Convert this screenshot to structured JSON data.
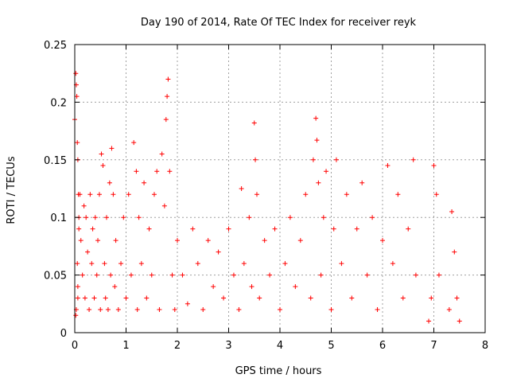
{
  "chart_data": {
    "type": "scatter",
    "title": "Day 190 of 2014, Rate Of TEC Index for receiver reyk",
    "xlabel": "GPS time / hours",
    "ylabel": "ROTI / TECUs",
    "xlim": [
      0,
      8
    ],
    "ylim": [
      0,
      0.25
    ],
    "xticks": [
      0,
      1,
      2,
      3,
      4,
      5,
      6,
      7,
      8
    ],
    "xtick_labels": [
      "0",
      "1",
      "2",
      "3",
      "4",
      "5",
      "6",
      "7",
      "8"
    ],
    "yticks": [
      0,
      0.05,
      0.1,
      0.15,
      0.2,
      0.25
    ],
    "ytick_labels": [
      "0",
      "0.05",
      "0.1",
      "0.15",
      "0.2",
      "0.25"
    ],
    "grid": true,
    "marker": "+",
    "color": "#ff0000",
    "series": [
      {
        "name": "ROTI",
        "x": [
          0.0,
          0.02,
          0.03,
          0.04,
          0.05,
          0.06,
          0.07,
          0.08,
          0.05,
          0.06,
          0.03,
          0.02,
          0.06,
          0.08,
          0.1,
          0.12,
          0.15,
          0.18,
          0.2,
          0.22,
          0.25,
          0.28,
          0.3,
          0.33,
          0.35,
          0.38,
          0.4,
          0.43,
          0.45,
          0.48,
          0.5,
          0.52,
          0.55,
          0.58,
          0.6,
          0.62,
          0.65,
          0.68,
          0.7,
          0.72,
          0.75,
          0.78,
          0.8,
          0.85,
          0.9,
          0.95,
          1.0,
          1.05,
          1.1,
          1.15,
          1.2,
          1.22,
          1.25,
          1.3,
          1.35,
          1.4,
          1.45,
          1.5,
          1.55,
          1.6,
          1.65,
          1.7,
          1.75,
          1.78,
          1.8,
          1.82,
          1.85,
          1.9,
          1.95,
          2.0,
          2.1,
          2.2,
          2.3,
          2.4,
          2.5,
          2.6,
          2.7,
          2.8,
          2.9,
          3.0,
          3.1,
          3.2,
          3.25,
          3.3,
          3.4,
          3.45,
          3.5,
          3.52,
          3.55,
          3.6,
          3.7,
          3.8,
          3.9,
          4.0,
          4.1,
          4.2,
          4.3,
          4.4,
          4.5,
          4.6,
          4.65,
          4.7,
          4.72,
          4.75,
          4.8,
          4.85,
          4.9,
          5.0,
          5.05,
          5.1,
          5.2,
          5.3,
          5.4,
          5.5,
          5.6,
          5.7,
          5.8,
          5.9,
          6.0,
          6.1,
          6.2,
          6.3,
          6.4,
          6.5,
          6.6,
          6.65,
          6.9,
          6.95,
          7.0,
          7.05,
          7.1,
          7.3,
          7.35,
          7.4,
          7.45,
          7.5
        ],
        "y": [
          0.185,
          0.225,
          0.215,
          0.205,
          0.165,
          0.15,
          0.12,
          0.1,
          0.06,
          0.04,
          0.02,
          0.015,
          0.03,
          0.09,
          0.12,
          0.08,
          0.05,
          0.11,
          0.03,
          0.1,
          0.07,
          0.02,
          0.12,
          0.06,
          0.09,
          0.03,
          0.1,
          0.05,
          0.08,
          0.12,
          0.02,
          0.155,
          0.145,
          0.06,
          0.03,
          0.1,
          0.02,
          0.13,
          0.05,
          0.16,
          0.12,
          0.04,
          0.08,
          0.02,
          0.06,
          0.1,
          0.03,
          0.12,
          0.05,
          0.165,
          0.14,
          0.02,
          0.1,
          0.06,
          0.13,
          0.03,
          0.09,
          0.05,
          0.12,
          0.14,
          0.02,
          0.155,
          0.11,
          0.185,
          0.205,
          0.22,
          0.14,
          0.05,
          0.02,
          0.08,
          0.05,
          0.025,
          0.09,
          0.06,
          0.02,
          0.08,
          0.04,
          0.07,
          0.03,
          0.09,
          0.05,
          0.02,
          0.125,
          0.06,
          0.1,
          0.04,
          0.182,
          0.15,
          0.12,
          0.03,
          0.08,
          0.05,
          0.09,
          0.02,
          0.06,
          0.1,
          0.04,
          0.08,
          0.12,
          0.03,
          0.15,
          0.186,
          0.167,
          0.13,
          0.05,
          0.1,
          0.14,
          0.02,
          0.09,
          0.15,
          0.06,
          0.12,
          0.03,
          0.09,
          0.13,
          0.05,
          0.1,
          0.02,
          0.08,
          0.145,
          0.06,
          0.12,
          0.03,
          0.09,
          0.15,
          0.05,
          0.01,
          0.03,
          0.145,
          0.12,
          0.05,
          0.02,
          0.105,
          0.07,
          0.03,
          0.01
        ]
      }
    ]
  }
}
